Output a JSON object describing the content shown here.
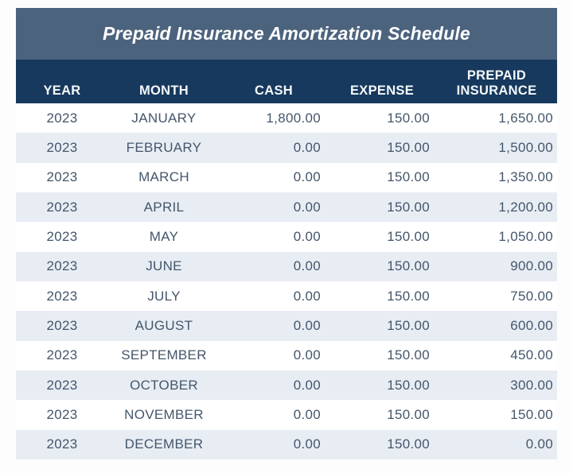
{
  "title": "Prepaid Insurance Amortization Schedule",
  "table": {
    "columns": {
      "year": "YEAR",
      "month": "MONTH",
      "cash": "CASH",
      "expense": "EXPENSE",
      "prepaid": "PREPAID INSURANCE"
    },
    "rows": [
      {
        "year": "2023",
        "month": "JANUARY",
        "cash": "1,800.00",
        "expense": "150.00",
        "prepaid": "1,650.00"
      },
      {
        "year": "2023",
        "month": "FEBRUARY",
        "cash": "0.00",
        "expense": "150.00",
        "prepaid": "1,500.00"
      },
      {
        "year": "2023",
        "month": "MARCH",
        "cash": "0.00",
        "expense": "150.00",
        "prepaid": "1,350.00"
      },
      {
        "year": "2023",
        "month": "APRIL",
        "cash": "0.00",
        "expense": "150.00",
        "prepaid": "1,200.00"
      },
      {
        "year": "2023",
        "month": "MAY",
        "cash": "0.00",
        "expense": "150.00",
        "prepaid": "1,050.00"
      },
      {
        "year": "2023",
        "month": "JUNE",
        "cash": "0.00",
        "expense": "150.00",
        "prepaid": "900.00"
      },
      {
        "year": "2023",
        "month": "JULY",
        "cash": "0.00",
        "expense": "150.00",
        "prepaid": "750.00"
      },
      {
        "year": "2023",
        "month": "AUGUST",
        "cash": "0.00",
        "expense": "150.00",
        "prepaid": "600.00"
      },
      {
        "year": "2023",
        "month": "SEPTEMBER",
        "cash": "0.00",
        "expense": "150.00",
        "prepaid": "450.00"
      },
      {
        "year": "2023",
        "month": "OCTOBER",
        "cash": "0.00",
        "expense": "150.00",
        "prepaid": "300.00"
      },
      {
        "year": "2023",
        "month": "NOVEMBER",
        "cash": "0.00",
        "expense": "150.00",
        "prepaid": "150.00"
      },
      {
        "year": "2023",
        "month": "DECEMBER",
        "cash": "0.00",
        "expense": "150.00",
        "prepaid": "0.00"
      }
    ]
  },
  "colors": {
    "title_bar": "#4c637e",
    "header_bar": "#17395d",
    "stripe": "#e8edf4",
    "row_white": "#ffffff",
    "text": "#44566b",
    "header_text": "#f4f8fb",
    "page_bg": "#fdfdfd"
  }
}
